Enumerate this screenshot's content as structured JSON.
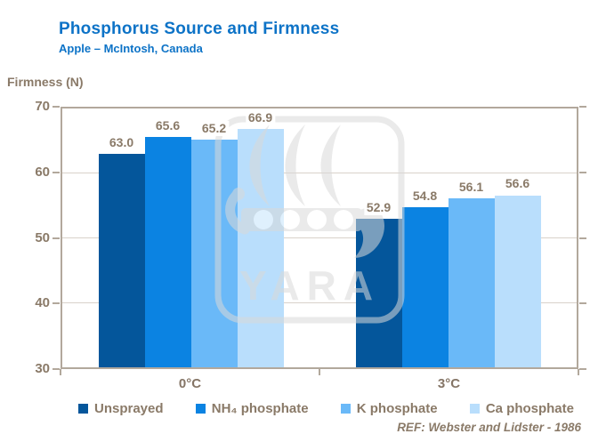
{
  "header": {
    "title": "Phosphorus Source and Firmness",
    "subtitle": "Apple – McIntosh, Canada"
  },
  "y_axis_title": "Firmness (N)",
  "footer_ref": "REF: Webster and Lidster - 1986",
  "watermark_text": "YARA",
  "colors": {
    "title_blue": "#0d73c7",
    "axis_text": "#8a7a68",
    "plot_border": "#b2a89c",
    "gridline": "#d9d2ca",
    "watermark_gray": "#d9d9d9"
  },
  "chart_data": {
    "type": "bar",
    "title": "Phosphorus Source and Firmness",
    "subtitle": "Apple – McIntosh, Canada",
    "xlabel": "",
    "ylabel": "Firmness (N)",
    "ylim": [
      30,
      70
    ],
    "yticks": [
      30,
      40,
      50,
      60,
      70
    ],
    "grid": true,
    "value_labels": true,
    "legend_position": "bottom",
    "categories": [
      "0°C",
      "3°C"
    ],
    "series": [
      {
        "name": "Unsprayed",
        "color": "#04569b",
        "values": [
          63.0,
          52.9
        ]
      },
      {
        "name": "NH₄ phosphate",
        "color": "#0b83e2",
        "values": [
          65.6,
          54.8
        ]
      },
      {
        "name": "K phosphate",
        "color": "#6ab9f8",
        "values": [
          65.2,
          56.1
        ]
      },
      {
        "name": "Ca phosphate",
        "color": "#b9defc",
        "values": [
          66.9,
          56.6
        ]
      }
    ],
    "reference": "REF: Webster and Lidster - 1986"
  }
}
